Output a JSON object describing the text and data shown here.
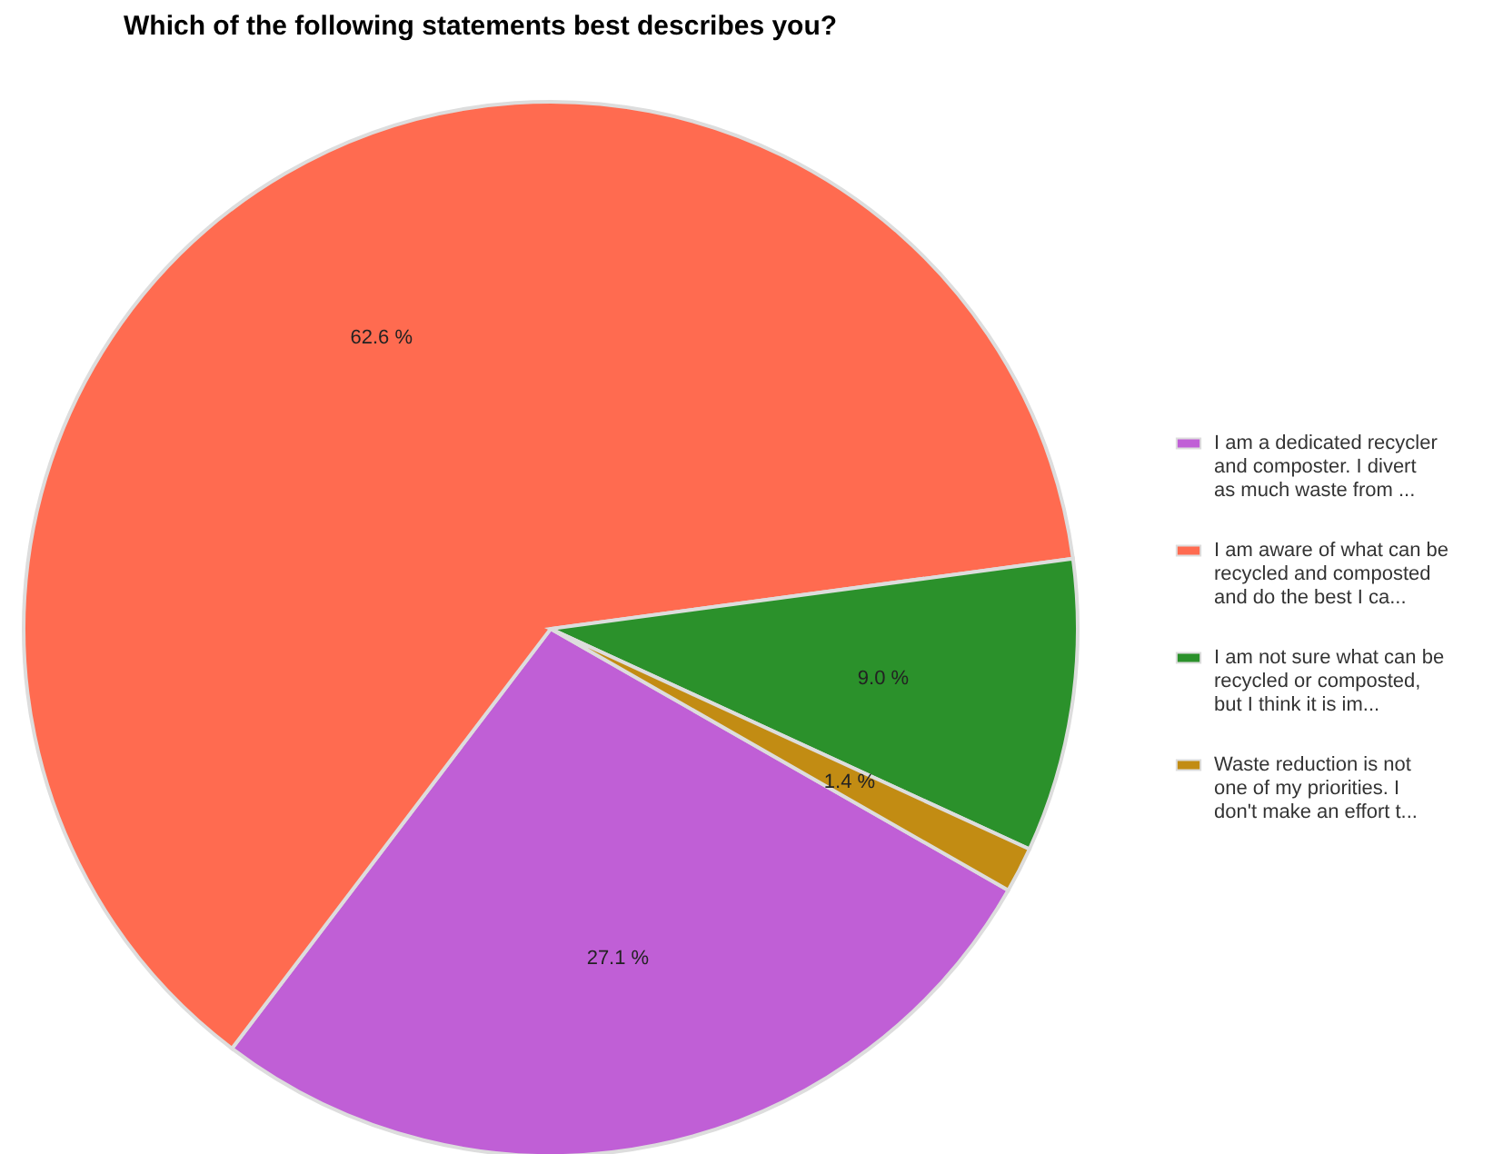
{
  "chart_data": {
    "type": "pie",
    "title": "Which of the following statements best describes you?",
    "categories": [
      "I am a dedicated recycler and composter. I divert as much waste from ...",
      "I am aware of what can be recycled and composted and do the best I ca...",
      "I am not sure what can be recycled or composted, but I think it is im...",
      "Waste reduction is not one of my priorities. I don't make an effort t..."
    ],
    "values": [
      27.1,
      62.6,
      9.0,
      1.4
    ],
    "colors": [
      "#c05fd6",
      "#ff6b50",
      "#2b912b",
      "#c28c13"
    ],
    "value_labels": [
      "27.1 %",
      "62.6 %",
      "9.0 %",
      "1.4 %"
    ],
    "legend": "right"
  }
}
